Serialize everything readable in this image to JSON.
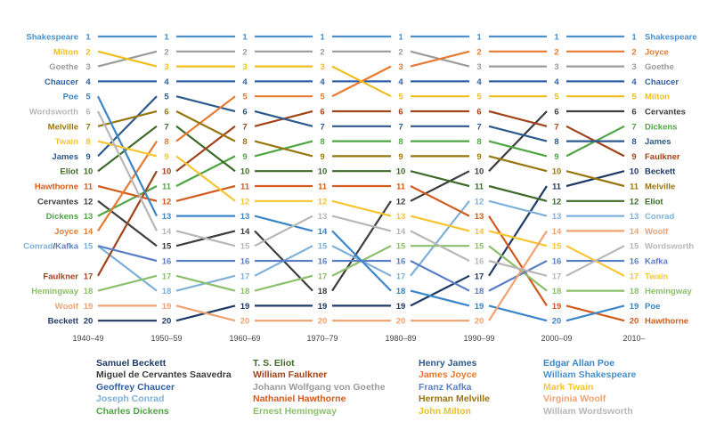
{
  "chart_data": {
    "type": "line",
    "ylim": [
      20,
      1
    ],
    "periods": [
      "1940–49",
      "1950–59",
      "1960–69",
      "1970–79",
      "1980–89",
      "1990–99",
      "2000–09",
      "2010–"
    ],
    "rank_labels": [
      "1",
      "2",
      "3",
      "4",
      "5",
      "6",
      "7",
      "8",
      "9",
      "10",
      "11",
      "12",
      "13",
      "14",
      "15",
      "16",
      "17",
      "18",
      "19",
      "20"
    ],
    "series": [
      {
        "name": "Samuel Beckett",
        "short": "Beckett",
        "color": "#1f3a68",
        "values": [
          20,
          20,
          19,
          19,
          19,
          17,
          11,
          10
        ]
      },
      {
        "name": "Miguel de Cervantes Saavedra",
        "short": "Cervantes",
        "color": "#3d3d3d",
        "values": [
          12,
          15,
          14,
          18,
          12,
          10,
          6,
          6
        ]
      },
      {
        "name": "Geoffrey Chaucer",
        "short": "Chaucer",
        "color": "#2f5fa4",
        "values": [
          4,
          4,
          4,
          4,
          4,
          4,
          4,
          4
        ]
      },
      {
        "name": "Joseph Conrad",
        "short": "Conrad",
        "color": "#7fb0da",
        "values": [
          15,
          18,
          17,
          15,
          17,
          12,
          13,
          13
        ]
      },
      {
        "name": "Charles Dickens",
        "short": "Dickens",
        "color": "#4fa544",
        "values": [
          13,
          11,
          9,
          8,
          8,
          8,
          9,
          7
        ]
      },
      {
        "name": "T. S. Eliot",
        "short": "Eliot",
        "color": "#3e6b2a",
        "values": [
          10,
          7,
          10,
          10,
          10,
          11,
          12,
          12
        ]
      },
      {
        "name": "William Faulkner",
        "short": "Faulkner",
        "color": "#a0441b",
        "values": [
          17,
          10,
          7,
          6,
          6,
          6,
          7,
          9
        ]
      },
      {
        "name": "Johann Wolfgang von Goethe",
        "short": "Goethe",
        "color": "#9b9b9b",
        "values": [
          3,
          2,
          2,
          2,
          2,
          3,
          3,
          3
        ]
      },
      {
        "name": "Nathaniel Hawthorne",
        "short": "Hawthorne",
        "color": "#d25b1c",
        "values": [
          11,
          12,
          11,
          11,
          11,
          13,
          19,
          20
        ]
      },
      {
        "name": "Ernest Hemingway",
        "short": "Hemingway",
        "color": "#8bc06a",
        "values": [
          18,
          17,
          18,
          17,
          15,
          15,
          18,
          18
        ]
      },
      {
        "name": "Henry James",
        "short": "James",
        "color": "#2d5a8c",
        "values": [
          9,
          5,
          6,
          7,
          7,
          7,
          8,
          8
        ]
      },
      {
        "name": "James Joyce",
        "short": "Joyce",
        "color": "#e77a30",
        "values": [
          14,
          8,
          5,
          5,
          3,
          2,
          2,
          2
        ]
      },
      {
        "name": "Franz Kafka",
        "short": "Kafka",
        "color": "#5b7fc6",
        "values": [
          15,
          16,
          16,
          16,
          16,
          18,
          16,
          16
        ]
      },
      {
        "name": "Herman Melville",
        "short": "Melville",
        "color": "#98760f",
        "values": [
          7,
          6,
          8,
          9,
          9,
          9,
          10,
          11
        ]
      },
      {
        "name": "John Milton",
        "short": "Milton",
        "color": "#f0be1c",
        "values": [
          2,
          3,
          3,
          3,
          5,
          5,
          5,
          5
        ]
      },
      {
        "name": "Edgar Allan Poe",
        "short": "Poe",
        "color": "#3a86c8",
        "values": [
          5,
          13,
          13,
          14,
          18,
          19,
          20,
          19
        ]
      },
      {
        "name": "William Shakespeare",
        "short": "Shakespeare",
        "color": "#4a91cc",
        "values": [
          1,
          1,
          1,
          1,
          1,
          1,
          1,
          1
        ]
      },
      {
        "name": "Mark Twain",
        "short": "Twain",
        "color": "#f7c531",
        "values": [
          8,
          9,
          12,
          12,
          13,
          14,
          15,
          17
        ]
      },
      {
        "name": "Virginia Woolf",
        "short": "Woolf",
        "color": "#f2a170",
        "values": [
          19,
          19,
          20,
          20,
          20,
          20,
          14,
          14
        ]
      },
      {
        "name": "William Wordsworth",
        "short": "Wordsworth",
        "color": "#b7b7b7",
        "values": [
          6,
          14,
          15,
          13,
          14,
          16,
          17,
          15
        ]
      }
    ]
  },
  "left_labels": [
    {
      "series": 16,
      "text": "Shakespeare"
    },
    {
      "series": 14,
      "text": "Milton"
    },
    {
      "series": 7,
      "text": "Goethe"
    },
    {
      "series": 2,
      "text": "Chaucer"
    },
    {
      "series": 15,
      "text": "Poe"
    },
    {
      "series": 19,
      "text": "Wordsworth"
    },
    {
      "series": 13,
      "text": "Melville"
    },
    {
      "series": 17,
      "text": "Twain"
    },
    {
      "series": 10,
      "text": "James"
    },
    {
      "series": 5,
      "text": "Eliot"
    },
    {
      "series": 8,
      "text": "Hawthorne"
    },
    {
      "series": 1,
      "text": "Cervantes"
    },
    {
      "series": 4,
      "text": "Dickens"
    },
    {
      "series": 11,
      "text": "Joyce"
    },
    {
      "series": 6,
      "text": "Faulkner"
    },
    {
      "series": 9,
      "text": "Hemingway"
    },
    {
      "series": 18,
      "text": "Woolf"
    },
    {
      "series": 0,
      "text": "Beckett"
    }
  ],
  "left_conrad_kafka": {
    "first": "Conrad",
    "slash": "/",
    "second": "Kafka",
    "first_series": 3,
    "second_series": 12
  },
  "legend_columns": [
    [
      0,
      1,
      2,
      3,
      4
    ],
    [
      5,
      6,
      7,
      8,
      9
    ],
    [
      10,
      11,
      12,
      13,
      14
    ],
    [
      15,
      16,
      17,
      18,
      19
    ]
  ]
}
